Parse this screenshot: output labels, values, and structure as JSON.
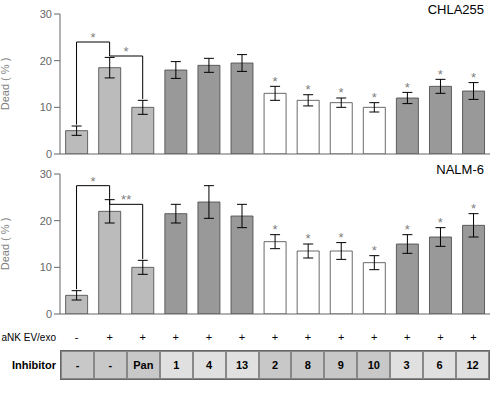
{
  "chart_data": [
    {
      "type": "bar",
      "title": "CHLA255",
      "y_label": "Dead ( % )",
      "categories": [
        null,
        null,
        null,
        null,
        null,
        null,
        null,
        null,
        null,
        null,
        null,
        null,
        null
      ],
      "values": [
        5.0,
        18.5,
        10.0,
        18.0,
        19.0,
        19.5,
        13.0,
        11.5,
        11.0,
        10.0,
        12.0,
        14.5,
        13.5
      ],
      "errors": [
        1.0,
        2.2,
        1.5,
        1.8,
        1.5,
        1.8,
        1.5,
        1.2,
        1.0,
        1.0,
        1.2,
        1.5,
        1.8
      ],
      "colors": [
        "#bbbbbb",
        "#bbbbbb",
        "#bbbbbb",
        "#999999",
        "#999999",
        "#999999",
        "#ffffff",
        "#ffffff",
        "#ffffff",
        "#ffffff",
        "#999999",
        "#999999",
        "#999999"
      ],
      "ylim": [
        0,
        30
      ],
      "yticks": [
        0,
        10,
        20,
        30
      ],
      "grid": false,
      "tick_labels": "y",
      "star_labels": [
        null,
        null,
        null,
        null,
        null,
        null,
        "*",
        "*",
        "*",
        "*",
        "*",
        "*",
        "*"
      ],
      "brackets": [
        {
          "from": 0,
          "to": 1,
          "y": 24.0,
          "label": "*"
        },
        {
          "from": 1,
          "to": 2,
          "y": 21.0,
          "label": "*"
        }
      ]
    },
    {
      "type": "bar",
      "title": "NALM-6",
      "y_label": "Dead ( % )",
      "categories": [
        null,
        null,
        null,
        null,
        null,
        null,
        null,
        null,
        null,
        null,
        null,
        null,
        null
      ],
      "values": [
        4.0,
        22.0,
        10.0,
        21.5,
        24.0,
        21.0,
        15.5,
        13.5,
        13.5,
        11.0,
        15.0,
        16.5,
        19.0
      ],
      "errors": [
        1.0,
        2.5,
        1.5,
        2.0,
        3.5,
        2.5,
        1.5,
        1.5,
        1.8,
        1.5,
        2.0,
        2.0,
        2.5
      ],
      "colors": [
        "#bbbbbb",
        "#bbbbbb",
        "#bbbbbb",
        "#999999",
        "#999999",
        "#999999",
        "#ffffff",
        "#ffffff",
        "#ffffff",
        "#ffffff",
        "#999999",
        "#999999",
        "#999999"
      ],
      "ylim": [
        0,
        30
      ],
      "yticks": [
        0,
        10,
        20,
        30
      ],
      "grid": false,
      "tick_labels": "y",
      "star_labels": [
        null,
        null,
        null,
        null,
        null,
        null,
        "*",
        "*",
        "*",
        "*",
        "*",
        "*",
        "*"
      ],
      "brackets": [
        {
          "from": 0,
          "to": 1,
          "y": 27.5,
          "label": "*"
        },
        {
          "from": 1,
          "to": 2,
          "y": 23.5,
          "label": "**"
        }
      ]
    },
    {
      "type": "table",
      "rows": [
        {
          "label": "aNK EV/exo",
          "cells": [
            "-",
            "+",
            "+",
            "+",
            "+",
            "+",
            "+",
            "+",
            "+",
            "+",
            "+",
            "+",
            "+"
          ]
        },
        {
          "label": "Inhibitor",
          "cells": [
            "-",
            "-",
            "Pan",
            "1",
            "4",
            "13",
            "2",
            "8",
            "9",
            "10",
            "3",
            "6",
            "12"
          ],
          "colors": [
            "#c8c8c8",
            "#c8c8c8",
            "#c8c8c8",
            "#e0e0e0",
            "#e0e0e0",
            "#e0e0e0",
            "#c8c8c8",
            "#c8c8c8",
            "#c8c8c8",
            "#c8c8c8",
            "#e0e0e0",
            "#e0e0e0",
            "#e0e0e0"
          ]
        }
      ]
    }
  ]
}
